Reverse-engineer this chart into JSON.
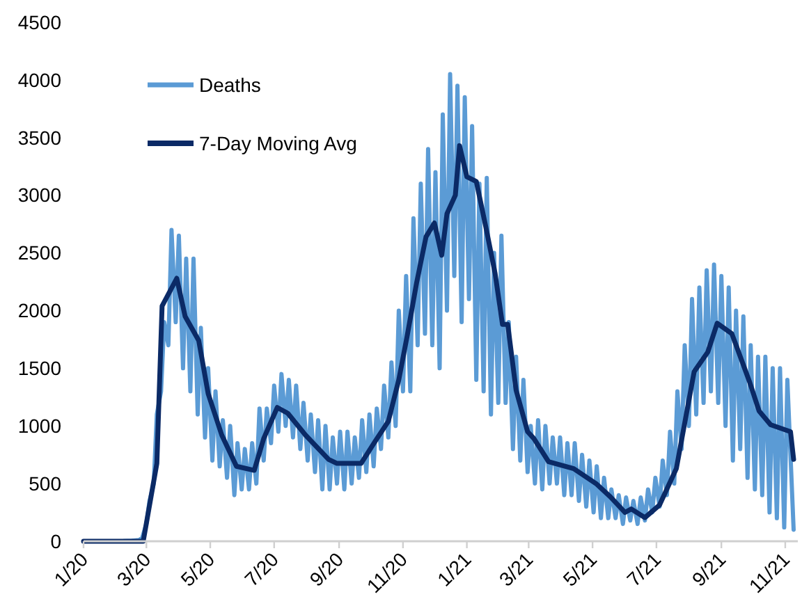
{
  "chart_data": {
    "type": "line",
    "xlim": [
      "2020-01-22",
      "2021-12-04"
    ],
    "ylim": [
      0,
      4500
    ],
    "yticks": [
      0,
      500,
      1000,
      1500,
      2000,
      2500,
      3000,
      3500,
      4000,
      4500
    ],
    "xticks": [
      {
        "value": "2020-01-22",
        "label": "1/20"
      },
      {
        "value": "2020-03-22",
        "label": "3/20"
      },
      {
        "value": "2020-05-22",
        "label": "5/20"
      },
      {
        "value": "2020-07-22",
        "label": "7/20"
      },
      {
        "value": "2020-09-22",
        "label": "9/20"
      },
      {
        "value": "2020-11-22",
        "label": "11/20"
      },
      {
        "value": "2021-01-22",
        "label": "1/21"
      },
      {
        "value": "2021-03-22",
        "label": "3/21"
      },
      {
        "value": "2021-05-22",
        "label": "5/21"
      },
      {
        "value": "2021-07-22",
        "label": "7/21"
      },
      {
        "value": "2021-09-22",
        "label": "9/21"
      },
      {
        "value": "2021-11-22",
        "label": "11/21"
      }
    ],
    "legend": "top left",
    "grid": false,
    "marker": "none",
    "line_style": "solid",
    "series": [
      {
        "name": "Deaths",
        "color": "#5b9bd5",
        "x": [
          "2020-01-22",
          "2020-02-29",
          "2020-03-08",
          "2020-03-15",
          "2020-03-18",
          "2020-03-22",
          "2020-03-25",
          "2020-03-29",
          "2020-04-01",
          "2020-04-05",
          "2020-04-08",
          "2020-04-12",
          "2020-04-15",
          "2020-04-19",
          "2020-04-22",
          "2020-04-26",
          "2020-04-29",
          "2020-05-03",
          "2020-05-06",
          "2020-05-10",
          "2020-05-13",
          "2020-05-17",
          "2020-05-20",
          "2020-05-24",
          "2020-05-27",
          "2020-05-31",
          "2020-06-03",
          "2020-06-07",
          "2020-06-10",
          "2020-06-14",
          "2020-06-17",
          "2020-06-21",
          "2020-06-24",
          "2020-06-28",
          "2020-07-01",
          "2020-07-05",
          "2020-07-08",
          "2020-07-12",
          "2020-07-15",
          "2020-07-19",
          "2020-07-22",
          "2020-07-26",
          "2020-07-29",
          "2020-08-02",
          "2020-08-05",
          "2020-08-09",
          "2020-08-12",
          "2020-08-16",
          "2020-08-19",
          "2020-08-23",
          "2020-08-26",
          "2020-08-30",
          "2020-09-02",
          "2020-09-06",
          "2020-09-09",
          "2020-09-13",
          "2020-09-16",
          "2020-09-20",
          "2020-09-23",
          "2020-09-27",
          "2020-09-30",
          "2020-10-04",
          "2020-10-07",
          "2020-10-11",
          "2020-10-14",
          "2020-10-18",
          "2020-10-21",
          "2020-10-25",
          "2020-10-28",
          "2020-11-01",
          "2020-11-04",
          "2020-11-08",
          "2020-11-11",
          "2020-11-15",
          "2020-11-18",
          "2020-11-22",
          "2020-11-25",
          "2020-11-29",
          "2020-12-02",
          "2020-12-06",
          "2020-12-09",
          "2020-12-13",
          "2020-12-16",
          "2020-12-20",
          "2020-12-23",
          "2020-12-27",
          "2020-12-30",
          "2021-01-03",
          "2021-01-06",
          "2021-01-10",
          "2021-01-13",
          "2021-01-17",
          "2021-01-20",
          "2021-01-24",
          "2021-01-27",
          "2021-01-31",
          "2021-02-03",
          "2021-02-07",
          "2021-02-10",
          "2021-02-14",
          "2021-02-17",
          "2021-02-21",
          "2021-02-24",
          "2021-02-28",
          "2021-03-03",
          "2021-03-07",
          "2021-03-10",
          "2021-03-14",
          "2021-03-17",
          "2021-03-21",
          "2021-03-24",
          "2021-03-28",
          "2021-03-31",
          "2021-04-04",
          "2021-04-07",
          "2021-04-11",
          "2021-04-14",
          "2021-04-18",
          "2021-04-21",
          "2021-04-25",
          "2021-04-28",
          "2021-05-02",
          "2021-05-05",
          "2021-05-09",
          "2021-05-12",
          "2021-05-16",
          "2021-05-19",
          "2021-05-23",
          "2021-05-26",
          "2021-05-30",
          "2021-06-02",
          "2021-06-06",
          "2021-06-09",
          "2021-06-13",
          "2021-06-16",
          "2021-06-20",
          "2021-06-23",
          "2021-06-27",
          "2021-06-30",
          "2021-07-04",
          "2021-07-07",
          "2021-07-11",
          "2021-07-14",
          "2021-07-18",
          "2021-07-21",
          "2021-07-25",
          "2021-07-28",
          "2021-08-01",
          "2021-08-04",
          "2021-08-08",
          "2021-08-11",
          "2021-08-15",
          "2021-08-18",
          "2021-08-22",
          "2021-08-25",
          "2021-08-29",
          "2021-09-01",
          "2021-09-05",
          "2021-09-08",
          "2021-09-12",
          "2021-09-15",
          "2021-09-19",
          "2021-09-22",
          "2021-09-26",
          "2021-09-29",
          "2021-10-03",
          "2021-10-06",
          "2021-10-10",
          "2021-10-13",
          "2021-10-17",
          "2021-10-20",
          "2021-10-24",
          "2021-10-27",
          "2021-10-31",
          "2021-11-03",
          "2021-11-07",
          "2021-11-10",
          "2021-11-14",
          "2021-11-17",
          "2021-11-21",
          "2021-11-24",
          "2021-11-30"
        ],
        "values": [
          0,
          1,
          5,
          10,
          30,
          150,
          350,
          500,
          1100,
          1300,
          1900,
          1700,
          2700,
          1900,
          2650,
          1500,
          2450,
          1300,
          2450,
          1100,
          1850,
          900,
          1500,
          700,
          1300,
          650,
          1050,
          550,
          1000,
          400,
          850,
          450,
          800,
          450,
          850,
          500,
          1150,
          700,
          1150,
          850,
          1350,
          950,
          1450,
          1000,
          1400,
          900,
          1350,
          800,
          1200,
          700,
          1100,
          600,
          1050,
          450,
          1000,
          450,
          900,
          500,
          950,
          450,
          950,
          500,
          900,
          550,
          1050,
          600,
          1100,
          650,
          1150,
          800,
          1350,
          900,
          1550,
          1000,
          2000,
          1300,
          2300,
          1300,
          2800,
          1700,
          3100,
          1800,
          3400,
          1700,
          3200,
          1500,
          3700,
          2000,
          4050,
          2300,
          3950,
          1900,
          3850,
          2100,
          3600,
          1400,
          3100,
          1300,
          3150,
          1100,
          2500,
          1200,
          2650,
          1200,
          1900,
          800,
          1600,
          700,
          1400,
          600,
          1000,
          500,
          1050,
          450,
          1000,
          500,
          900,
          500,
          900,
          400,
          850,
          400,
          850,
          350,
          750,
          300,
          700,
          250,
          650,
          200,
          550,
          200,
          450,
          200,
          400,
          150,
          380,
          180,
          350,
          150,
          380,
          180,
          450,
          250,
          550,
          300,
          700,
          400,
          950,
          500,
          1300,
          800,
          1700,
          1000,
          2100,
          1100,
          2200,
          1200,
          2350,
          1300,
          2400,
          1200,
          2300,
          1000,
          2200,
          700,
          2000,
          800,
          1950,
          550,
          1700,
          450,
          1600,
          400,
          1600,
          250,
          1500,
          200,
          1500,
          120,
          1400,
          100
        ]
      },
      {
        "name": "7-Day Moving Avg",
        "color": "#0b2a66",
        "x": [
          "2020-01-22",
          "2020-03-19",
          "2020-04-01",
          "2020-04-06",
          "2020-04-20",
          "2020-04-28",
          "2020-05-11",
          "2020-05-20",
          "2020-06-02",
          "2020-06-16",
          "2020-07-03",
          "2020-07-12",
          "2020-07-25",
          "2020-08-04",
          "2020-08-21",
          "2020-09-12",
          "2020-09-20",
          "2020-10-13",
          "2020-10-26",
          "2020-11-08",
          "2020-11-18",
          "2020-11-26",
          "2020-12-05",
          "2020-12-14",
          "2020-12-22",
          "2020-12-29",
          "2021-01-03",
          "2021-01-11",
          "2021-01-15",
          "2021-01-22",
          "2021-01-31",
          "2021-02-09",
          "2021-02-18",
          "2021-02-25",
          "2021-03-02",
          "2021-03-10",
          "2021-03-21",
          "2021-03-27",
          "2021-04-10",
          "2021-05-04",
          "2021-05-26",
          "2021-06-08",
          "2021-06-22",
          "2021-06-28",
          "2021-07-11",
          "2021-07-25",
          "2021-08-10",
          "2021-08-27",
          "2021-09-09",
          "2021-09-18",
          "2021-10-02",
          "2021-10-19",
          "2021-10-28",
          "2021-11-08",
          "2021-11-27",
          "2021-11-30"
        ],
        "values": [
          0,
          0,
          675,
          2040,
          2280,
          1950,
          1740,
          1280,
          920,
          650,
          615,
          890,
          1160,
          1110,
          920,
          710,
          675,
          675,
          860,
          1040,
          1400,
          1780,
          2240,
          2640,
          2760,
          2480,
          2840,
          3000,
          3430,
          3160,
          3120,
          2730,
          2320,
          1880,
          1880,
          1310,
          950,
          890,
          690,
          630,
          495,
          385,
          250,
          280,
          205,
          315,
          630,
          1470,
          1640,
          1890,
          1800,
          1380,
          1130,
          1010,
          950,
          710
        ]
      }
    ]
  }
}
